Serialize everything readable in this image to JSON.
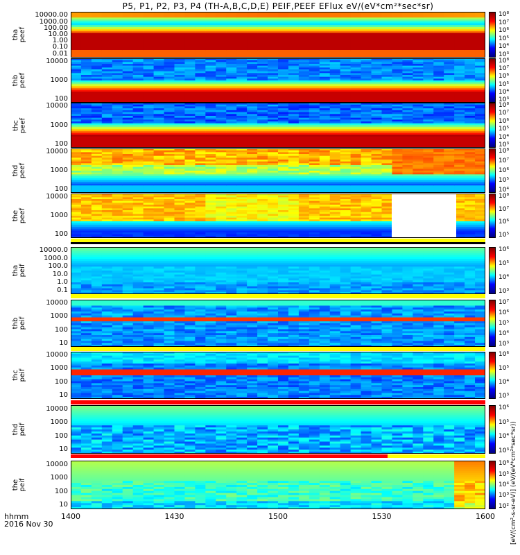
{
  "title": "P5, P1, P2, P3, P4 (TH-A,B,C,D,E) PEIF,PEEF EFlux eV/(eV*cm²*sec*sr)",
  "x_axis": {
    "ticks": [
      "1400",
      "1430",
      "1500",
      "1530",
      "1600"
    ],
    "label_line1": "hhmm",
    "label_line2": "2016 Nov 30"
  },
  "colorbar_title": "[eV/(cm²-s-sr-eV)] (eV/(eV*cm²*sec*sr))",
  "chart_data": {
    "type": "heatmap",
    "x": {
      "start": "14:00",
      "end": "16:00",
      "ticks": [
        "1400",
        "1430",
        "1500",
        "1530",
        "1600"
      ]
    },
    "panels": [
      {
        "ylabel": [
          "tha",
          "peef"
        ],
        "yticks": [
          "10000.00",
          "1000.00",
          "100.00",
          "10.00",
          "1.00",
          "0.10",
          "0.01"
        ],
        "cbar_ticks": [
          "10⁸",
          "10⁷",
          "10⁶",
          "10⁵",
          "10⁴",
          "10³"
        ],
        "yscale": "log"
      },
      {
        "ylabel": [
          "thb",
          "peef"
        ],
        "yticks": [
          "10000",
          "1000",
          "100"
        ],
        "cbar_ticks": [
          "10⁸",
          "10⁷",
          "10⁶",
          "10⁵",
          "10⁴",
          "10³"
        ],
        "yscale": "log"
      },
      {
        "ylabel": [
          "thc",
          "peef"
        ],
        "yticks": [
          "10000",
          "1000",
          "100"
        ],
        "cbar_ticks": [
          "10⁸",
          "10⁷",
          "10⁶",
          "10⁵",
          "10⁴",
          "10³"
        ],
        "yscale": "log"
      },
      {
        "ylabel": [
          "thd",
          "peef"
        ],
        "yticks": [
          "10000",
          "1000",
          "100"
        ],
        "cbar_ticks": [
          "10⁸",
          "10⁷",
          "10⁶",
          "10⁵",
          "10⁴"
        ],
        "yscale": "log"
      },
      {
        "ylabel": [
          "the",
          "peef"
        ],
        "yticks": [
          "10000",
          "1000",
          "100"
        ],
        "cbar_ticks": [
          "10⁸",
          "10⁷",
          "10⁶",
          "10⁵"
        ],
        "yscale": "log",
        "gap": [
          "15:27",
          "15:43"
        ]
      },
      {
        "ylabel": [
          "tha",
          "peif"
        ],
        "yticks": [
          "10000.0",
          "1000.0",
          "100.0",
          "10.0",
          "1.0",
          "0.1"
        ],
        "cbar_ticks": [
          "10⁶",
          "10⁵",
          "10⁴",
          "10³"
        ],
        "yscale": "log"
      },
      {
        "ylabel": [
          "thb",
          "peif"
        ],
        "yticks": [
          "10000",
          "1000",
          "100",
          "10"
        ],
        "cbar_ticks": [
          "10⁷",
          "10⁶",
          "10⁵",
          "10⁴",
          "10³"
        ],
        "yscale": "log"
      },
      {
        "ylabel": [
          "thc",
          "peif"
        ],
        "yticks": [
          "10000",
          "1000",
          "100",
          "10"
        ],
        "cbar_ticks": [
          "10⁶",
          "10⁵",
          "10⁴",
          "10³"
        ],
        "yscale": "log"
      },
      {
        "ylabel": [
          "thd",
          "peif"
        ],
        "yticks": [
          "10000",
          "1000",
          "100",
          "10"
        ],
        "cbar_ticks": [
          "10⁶",
          "10⁵",
          "10⁴",
          "10³"
        ],
        "yscale": "log"
      },
      {
        "ylabel": [
          "the",
          "peif"
        ],
        "yticks": [
          "10000",
          "1000",
          "100",
          "10"
        ],
        "cbar_ticks": [
          "10⁶",
          "10⁵",
          "10⁴",
          "10³",
          "10²"
        ],
        "yscale": "log"
      }
    ]
  }
}
